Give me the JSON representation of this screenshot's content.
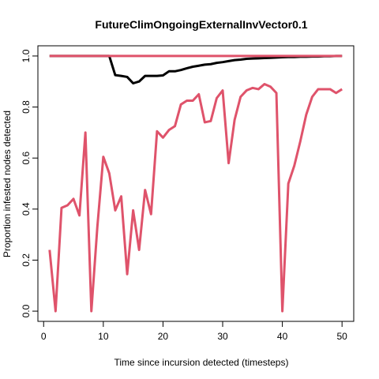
{
  "chart_data": {
    "type": "line",
    "title": "FutureClimOngoingExternalInvVector0.1",
    "xlabel": "Time since incursion detected (timesteps)",
    "ylabel": "Proportion infested nodes detected",
    "xlim": [
      -0.96,
      51.96
    ],
    "ylim": [
      -0.04,
      1.04
    ],
    "xticks": [
      0,
      10,
      20,
      30,
      40,
      50
    ],
    "yticks": [
      0.0,
      0.2,
      0.4,
      0.6,
      0.8,
      1.0
    ],
    "ytick_labels": [
      "0.0",
      "0.2",
      "0.4",
      "0.6",
      "0.8",
      "1.0"
    ],
    "grid": false,
    "series": [
      {
        "name": "series-black",
        "color": "#000000",
        "x": [
          1,
          2,
          3,
          4,
          5,
          6,
          7,
          8,
          9,
          10,
          11,
          12,
          13,
          14,
          15,
          16,
          17,
          18,
          19,
          20,
          21,
          22,
          23,
          24,
          25,
          26,
          27,
          28,
          29,
          30,
          31,
          32,
          33,
          34,
          35,
          36,
          37,
          38,
          39,
          40,
          41,
          42,
          43,
          44,
          45,
          46,
          47,
          48,
          49,
          50
        ],
        "y": [
          1,
          1,
          1,
          1,
          1,
          1,
          1,
          1,
          1,
          1,
          1,
          0.925,
          0.922,
          0.918,
          0.893,
          0.9,
          0.922,
          0.922,
          0.922,
          0.924,
          0.94,
          0.94,
          0.945,
          0.952,
          0.958,
          0.962,
          0.966,
          0.968,
          0.973,
          0.976,
          0.98,
          0.984,
          0.986,
          0.989,
          0.99,
          0.991,
          0.992,
          0.993,
          0.994,
          0.995,
          0.996,
          0.996,
          0.997,
          0.997,
          0.998,
          0.998,
          0.999,
          0.999,
          1,
          1
        ]
      },
      {
        "name": "series-pink-flat",
        "color": "#DF536B",
        "x": [
          1,
          50
        ],
        "y": [
          1,
          1
        ]
      },
      {
        "name": "series-pink",
        "color": "#DF536B",
        "x": [
          1,
          2,
          3,
          4,
          5,
          6,
          7,
          8,
          9,
          10,
          11,
          12,
          13,
          14,
          15,
          16,
          17,
          18,
          19,
          20,
          21,
          22,
          23,
          24,
          25,
          26,
          27,
          28,
          29,
          30,
          31,
          32,
          33,
          34,
          35,
          36,
          37,
          38,
          39,
          40,
          41,
          42,
          43,
          44,
          45,
          46,
          47,
          48,
          49,
          50
        ],
        "y": [
          0.24,
          0.0,
          0.405,
          0.415,
          0.44,
          0.375,
          0.7,
          0.0,
          0.33,
          0.605,
          0.54,
          0.395,
          0.45,
          0.145,
          0.395,
          0.24,
          0.475,
          0.38,
          0.705,
          0.68,
          0.71,
          0.725,
          0.81,
          0.825,
          0.825,
          0.85,
          0.74,
          0.745,
          0.835,
          0.865,
          0.58,
          0.75,
          0.84,
          0.865,
          0.875,
          0.87,
          0.89,
          0.88,
          0.855,
          0.0,
          0.5,
          0.57,
          0.665,
          0.77,
          0.84,
          0.87,
          0.87,
          0.87,
          0.855,
          0.87
        ]
      }
    ]
  }
}
